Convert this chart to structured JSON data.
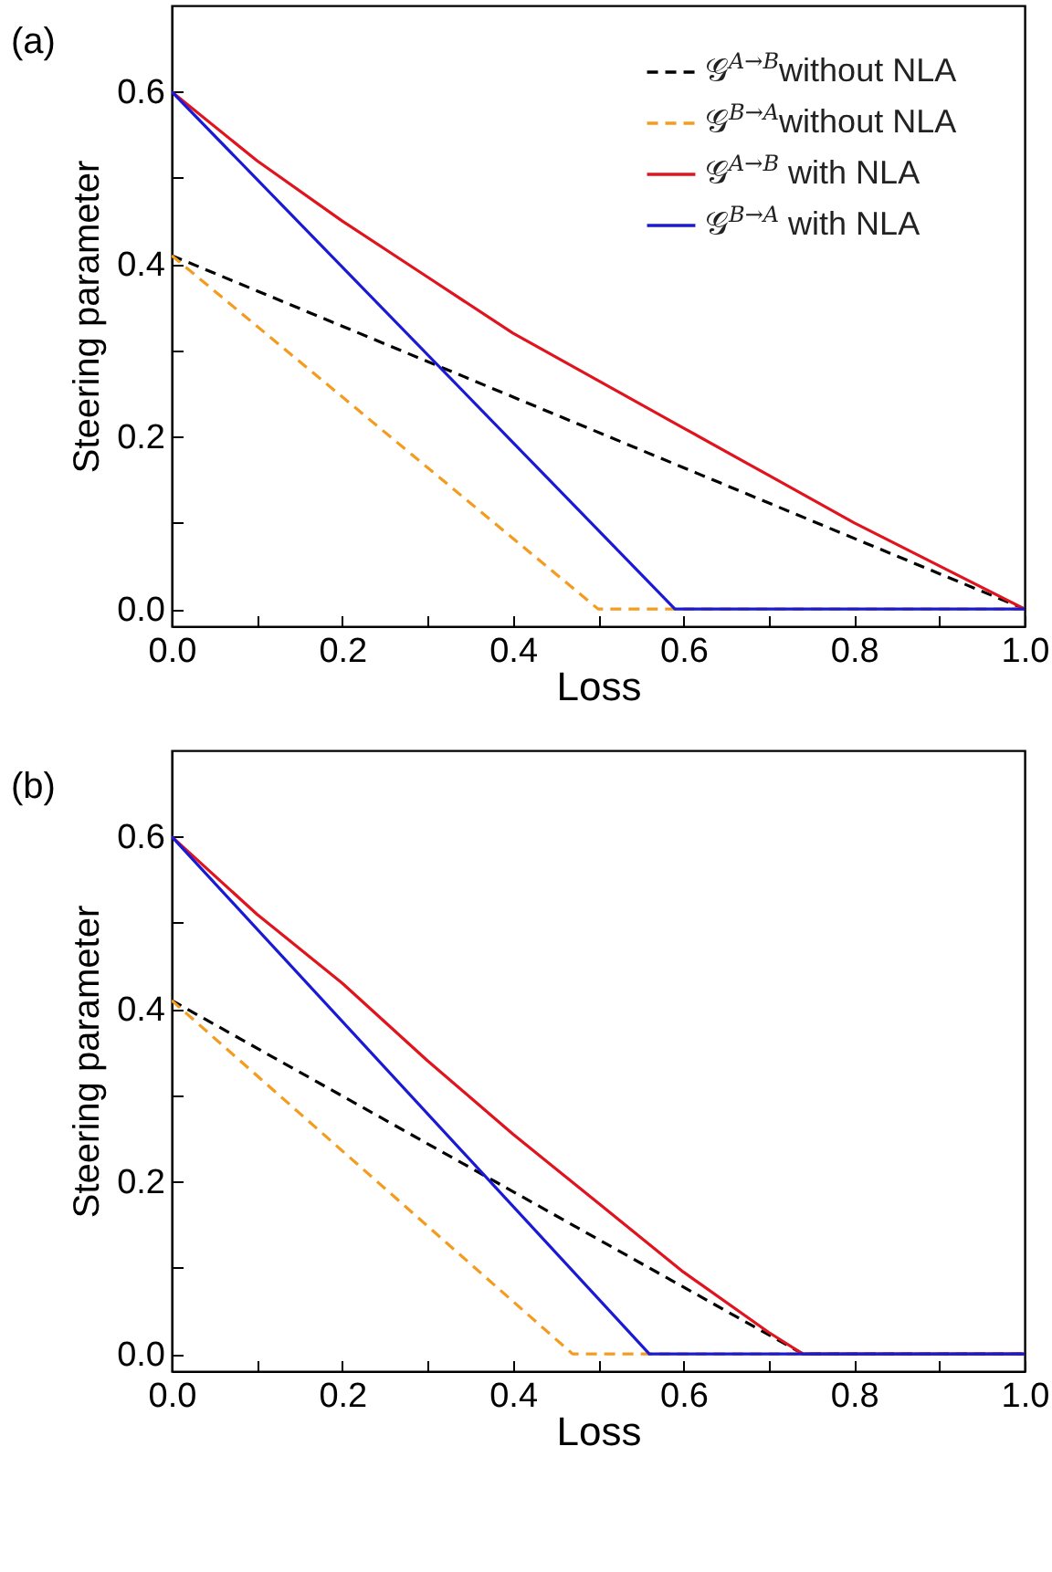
{
  "chart_data": [
    {
      "type": "line",
      "title": "(a)",
      "xlabel": "Loss",
      "ylabel": "Steering parameter",
      "xlim": [
        0,
        1
      ],
      "ylim": [
        -0.02,
        0.7
      ],
      "xticks": [
        {
          "value": 0,
          "label": "0.0"
        },
        {
          "value": 0.1,
          "label": null
        },
        0.2,
        {
          "value": 0.3,
          "label": null
        },
        0.4,
        {
          "value": 0.5,
          "label": null
        },
        0.6,
        {
          "value": 0.7,
          "label": null
        },
        0.8,
        {
          "value": 0.9,
          "label": null
        },
        {
          "value": 1,
          "label": "1.0"
        }
      ],
      "yticks": [
        {
          "value": 0,
          "label": "0.0"
        },
        {
          "value": 0.1,
          "label": null
        },
        0.2,
        {
          "value": 0.3,
          "label": null
        },
        0.4,
        {
          "value": 0.5,
          "label": null
        },
        0.6
      ],
      "grid": false,
      "legend": "top right",
      "series": [
        {
          "name": "𝒢$^{A→B}$without NLA",
          "color": "#000000",
          "line_style": "dashed",
          "x": [
            0,
            1
          ],
          "values": [
            0.41,
            0
          ]
        },
        {
          "name": "𝒢$^{B→A}$without NLA",
          "color": "#f39c1f",
          "line_style": "dashed",
          "x": [
            0,
            0.5,
            1
          ],
          "values": [
            0.41,
            0,
            0
          ]
        },
        {
          "name": "𝒢$^{A→B}$ with NLA",
          "color": "#e0141e",
          "line_style": "solid",
          "x": [
            0,
            0.1,
            0.2,
            0.3,
            0.4,
            0.5,
            0.6,
            0.7,
            0.8,
            0.9,
            1
          ],
          "values": [
            0.6,
            0.52,
            0.45,
            0.385,
            0.32,
            0.265,
            0.21,
            0.155,
            0.1,
            0.05,
            0
          ]
        },
        {
          "name": "𝒢$^{B→A}$ with NLA",
          "color": "#1a1ad6",
          "line_style": "solid",
          "x": [
            0,
            0.59,
            1
          ],
          "values": [
            0.6,
            0,
            0
          ]
        }
      ]
    },
    {
      "type": "line",
      "title": "(b)",
      "xlabel": "Loss",
      "ylabel": "Steering parameter",
      "xlim": [
        0,
        1
      ],
      "ylim": [
        -0.02,
        0.7
      ],
      "xticks": [
        {
          "value": 0,
          "label": "0.0"
        },
        {
          "value": 0.1,
          "label": null
        },
        0.2,
        {
          "value": 0.3,
          "label": null
        },
        0.4,
        {
          "value": 0.5,
          "label": null
        },
        0.6,
        {
          "value": 0.7,
          "label": null
        },
        0.8,
        {
          "value": 0.9,
          "label": null
        },
        {
          "value": 1,
          "label": "1.0"
        }
      ],
      "yticks": [
        {
          "value": 0,
          "label": "0.0"
        },
        {
          "value": 0.1,
          "label": null
        },
        0.2,
        {
          "value": 0.3,
          "label": null
        },
        0.4,
        {
          "value": 0.5,
          "label": null
        },
        0.6
      ],
      "grid": false,
      "legend": "top right",
      "series": [
        {
          "name": "𝒢$^{A→B}$without NLA",
          "color": "#000000",
          "line_style": "dashed",
          "x": [
            0,
            0.74,
            1
          ],
          "values": [
            0.41,
            0,
            0
          ]
        },
        {
          "name": "𝒢$^{B→A}$without NLA",
          "color": "#f39c1f",
          "line_style": "dashed",
          "x": [
            0,
            0.47,
            1
          ],
          "values": [
            0.41,
            0,
            0
          ]
        },
        {
          "name": "𝒢$^{A→B}$ with NLA",
          "color": "#e0141e",
          "line_style": "solid",
          "x": [
            0,
            0.1,
            0.2,
            0.3,
            0.4,
            0.5,
            0.6,
            0.7,
            0.74,
            1
          ],
          "values": [
            0.6,
            0.51,
            0.43,
            0.34,
            0.255,
            0.175,
            0.095,
            0.025,
            0,
            0
          ]
        },
        {
          "name": "𝒢$^{B→A}$ with NLA",
          "color": "#1a1ad6",
          "line_style": "solid",
          "x": [
            0,
            0.56,
            1
          ],
          "values": [
            0.6,
            0,
            0
          ]
        }
      ]
    }
  ]
}
